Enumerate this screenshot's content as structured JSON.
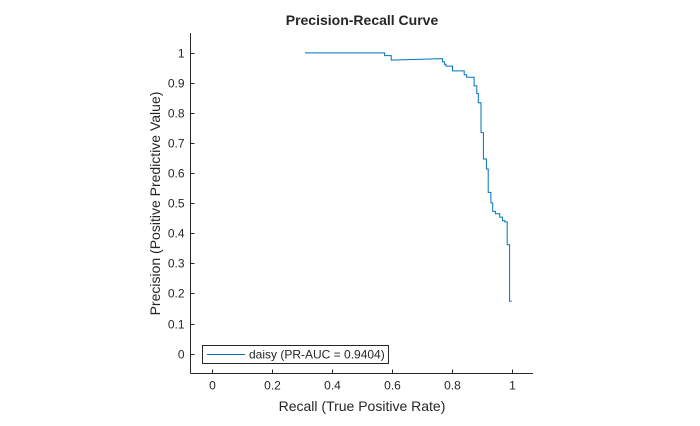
{
  "chart_data": {
    "type": "line",
    "title": "Precision-Recall Curve",
    "xlabel": "Recall (True Positive Rate)",
    "ylabel": "Precision (Positive Predictive Value)",
    "xlim": [
      -0.07,
      1.07
    ],
    "ylim": [
      -0.066,
      1.066
    ],
    "xticks": [
      0,
      0.2,
      0.4,
      0.6,
      0.8,
      1
    ],
    "xtick_labels": [
      "0",
      "0.2",
      "0.4",
      "0.6",
      "0.8",
      "1"
    ],
    "yticks": [
      0,
      0.1,
      0.2,
      0.3,
      0.4,
      0.5,
      0.6,
      0.7,
      0.8,
      0.9,
      1
    ],
    "ytick_labels": [
      "0",
      "0.1",
      "0.2",
      "0.3",
      "0.4",
      "0.5",
      "0.6",
      "0.7",
      "0.8",
      "0.9",
      "1"
    ],
    "grid": false,
    "legend_placement": "bottom-left",
    "series": [
      {
        "name": "daisy (PR-AUC = 0.9404)",
        "color": "#0072BD",
        "points": [
          [
            0.311,
            1.0
          ],
          [
            0.576,
            1.0
          ],
          [
            0.576,
            0.991
          ],
          [
            0.598,
            0.991
          ],
          [
            0.598,
            0.976
          ],
          [
            0.769,
            0.981
          ],
          [
            0.769,
            0.97
          ],
          [
            0.775,
            0.97
          ],
          [
            0.775,
            0.962
          ],
          [
            0.78,
            0.962
          ],
          [
            0.78,
            0.956
          ],
          [
            0.802,
            0.956
          ],
          [
            0.802,
            0.94
          ],
          [
            0.841,
            0.94
          ],
          [
            0.841,
            0.927
          ],
          [
            0.849,
            0.927
          ],
          [
            0.849,
            0.919
          ],
          [
            0.874,
            0.919
          ],
          [
            0.874,
            0.89
          ],
          [
            0.883,
            0.89
          ],
          [
            0.883,
            0.865
          ],
          [
            0.888,
            0.865
          ],
          [
            0.888,
            0.834
          ],
          [
            0.897,
            0.834
          ],
          [
            0.897,
            0.735
          ],
          [
            0.905,
            0.735
          ],
          [
            0.905,
            0.647
          ],
          [
            0.915,
            0.647
          ],
          [
            0.915,
            0.614
          ],
          [
            0.921,
            0.614
          ],
          [
            0.921,
            0.536
          ],
          [
            0.93,
            0.536
          ],
          [
            0.93,
            0.501
          ],
          [
            0.936,
            0.501
          ],
          [
            0.936,
            0.473
          ],
          [
            0.945,
            0.473
          ],
          [
            0.945,
            0.465
          ],
          [
            0.959,
            0.465
          ],
          [
            0.959,
            0.454
          ],
          [
            0.968,
            0.454
          ],
          [
            0.968,
            0.442
          ],
          [
            0.976,
            0.442
          ],
          [
            0.976,
            0.438
          ],
          [
            0.984,
            0.438
          ],
          [
            0.984,
            0.362
          ],
          [
            0.992,
            0.362
          ],
          [
            0.992,
            0.174
          ],
          [
            0.999,
            0.174
          ]
        ]
      }
    ]
  }
}
